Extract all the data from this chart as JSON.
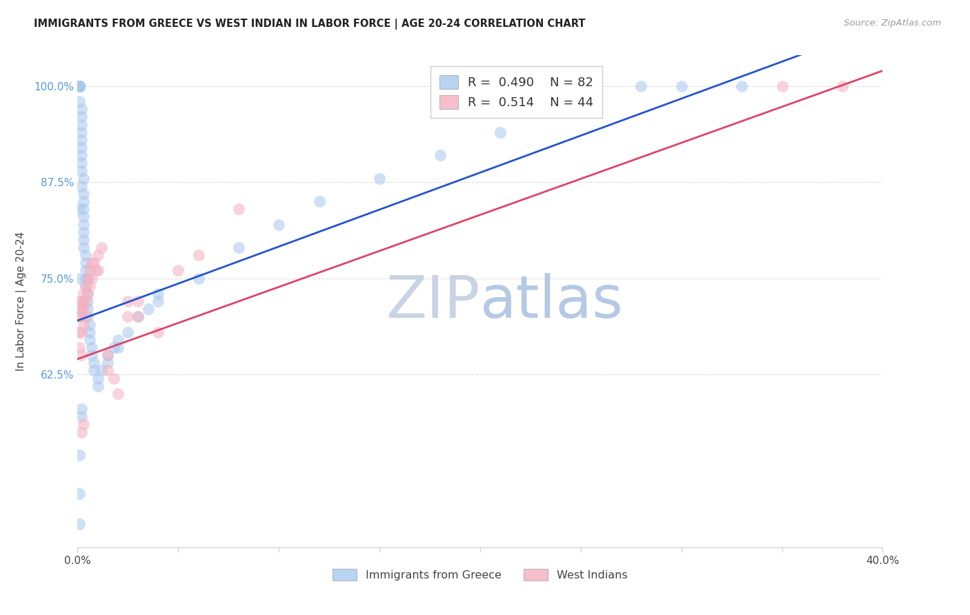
{
  "title": "IMMIGRANTS FROM GREECE VS WEST INDIAN IN LABOR FORCE | AGE 20-24 CORRELATION CHART",
  "source": "Source: ZipAtlas.com",
  "ylabel": "In Labor Force | Age 20-24",
  "xlim": [
    0.0,
    0.4
  ],
  "ylim": [
    0.4,
    1.04
  ],
  "xtick_positions": [
    0.0,
    0.05,
    0.1,
    0.15,
    0.2,
    0.25,
    0.3,
    0.35,
    0.4
  ],
  "xticklabels": [
    "0.0%",
    "",
    "",
    "",
    "",
    "",
    "",
    "",
    "40.0%"
  ],
  "ytick_positions": [
    0.625,
    0.75,
    0.875,
    1.0
  ],
  "yticklabels": [
    "62.5%",
    "75.0%",
    "87.5%",
    "100.0%"
  ],
  "blue_fill": "#A8C8F0",
  "pink_fill": "#F5B0C0",
  "blue_line_color": "#2255CC",
  "pink_line_color": "#DD4466",
  "yaxis_tick_color": "#5599DD",
  "grid_color": "#DDDDDD",
  "title_color": "#222222",
  "source_color": "#999999",
  "watermark_color": "#C8D4EC",
  "legend_R_blue": "0.490",
  "legend_N_blue": "82",
  "legend_R_pink": "0.514",
  "legend_N_pink": "44",
  "blue_line_x": [
    0.0,
    0.4
  ],
  "blue_line_y": [
    0.695,
    1.08
  ],
  "pink_line_x": [
    0.0,
    0.4
  ],
  "pink_line_y": [
    0.645,
    1.02
  ],
  "blue_x": [
    0.001,
    0.001,
    0.001,
    0.001,
    0.001,
    0.001,
    0.001,
    0.001,
    0.001,
    0.001,
    0.001,
    0.001,
    0.001,
    0.001,
    0.001,
    0.002,
    0.002,
    0.002,
    0.002,
    0.002,
    0.002,
    0.002,
    0.002,
    0.002,
    0.002,
    0.003,
    0.003,
    0.003,
    0.003,
    0.003,
    0.003,
    0.003,
    0.003,
    0.004,
    0.004,
    0.004,
    0.004,
    0.004,
    0.005,
    0.005,
    0.005,
    0.005,
    0.006,
    0.006,
    0.006,
    0.007,
    0.007,
    0.008,
    0.008,
    0.01,
    0.01,
    0.012,
    0.015,
    0.015,
    0.018,
    0.02,
    0.02,
    0.025,
    0.03,
    0.035,
    0.04,
    0.04,
    0.06,
    0.08,
    0.1,
    0.12,
    0.15,
    0.18,
    0.21,
    0.25,
    0.28,
    0.3,
    0.33,
    0.005,
    0.003,
    0.002,
    0.001,
    0.001,
    0.001,
    0.001,
    0.001,
    0.002
  ],
  "blue_y": [
    1.0,
    1.0,
    1.0,
    1.0,
    1.0,
    1.0,
    1.0,
    1.0,
    1.0,
    1.0,
    1.0,
    1.0,
    1.0,
    1.0,
    0.98,
    0.97,
    0.96,
    0.95,
    0.94,
    0.93,
    0.92,
    0.91,
    0.9,
    0.89,
    0.87,
    0.86,
    0.85,
    0.84,
    0.83,
    0.82,
    0.81,
    0.8,
    0.79,
    0.78,
    0.77,
    0.76,
    0.75,
    0.74,
    0.73,
    0.72,
    0.71,
    0.7,
    0.69,
    0.68,
    0.67,
    0.66,
    0.65,
    0.64,
    0.63,
    0.62,
    0.61,
    0.63,
    0.65,
    0.64,
    0.66,
    0.67,
    0.66,
    0.68,
    0.7,
    0.71,
    0.73,
    0.72,
    0.75,
    0.79,
    0.82,
    0.85,
    0.88,
    0.91,
    0.94,
    0.97,
    1.0,
    1.0,
    1.0,
    0.75,
    0.88,
    0.58,
    0.52,
    0.47,
    0.43,
    0.75,
    0.84,
    0.57
  ],
  "pink_x": [
    0.001,
    0.001,
    0.001,
    0.001,
    0.001,
    0.002,
    0.002,
    0.002,
    0.002,
    0.002,
    0.003,
    0.003,
    0.003,
    0.003,
    0.004,
    0.004,
    0.004,
    0.005,
    0.005,
    0.006,
    0.006,
    0.007,
    0.007,
    0.008,
    0.009,
    0.01,
    0.01,
    0.012,
    0.015,
    0.015,
    0.018,
    0.02,
    0.025,
    0.025,
    0.03,
    0.03,
    0.04,
    0.05,
    0.06,
    0.08,
    0.35,
    0.38,
    0.002,
    0.003
  ],
  "pink_y": [
    0.72,
    0.71,
    0.7,
    0.68,
    0.66,
    0.72,
    0.71,
    0.7,
    0.68,
    0.65,
    0.73,
    0.72,
    0.71,
    0.69,
    0.74,
    0.72,
    0.7,
    0.75,
    0.73,
    0.76,
    0.74,
    0.77,
    0.75,
    0.77,
    0.76,
    0.78,
    0.76,
    0.79,
    0.65,
    0.63,
    0.62,
    0.6,
    0.72,
    0.7,
    0.72,
    0.7,
    0.68,
    0.76,
    0.78,
    0.84,
    1.0,
    1.0,
    0.55,
    0.56
  ]
}
